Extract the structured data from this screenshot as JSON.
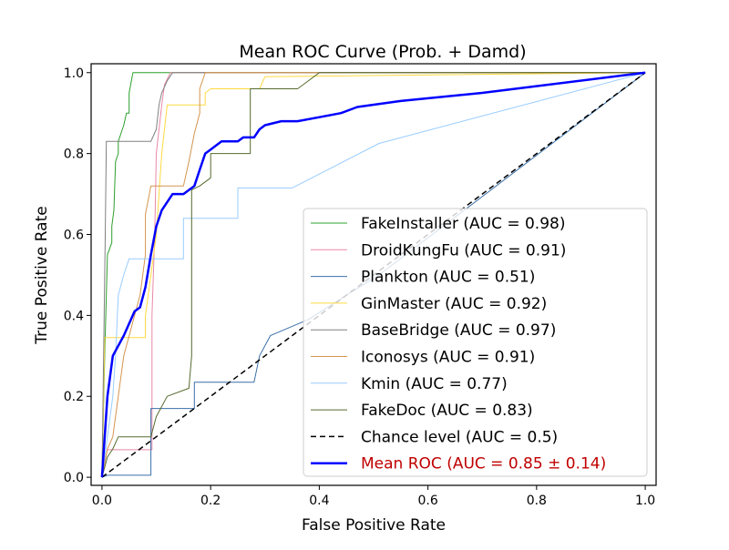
{
  "chart_data": {
    "type": "line",
    "title": "Mean ROC Curve (Prob. + Damd)",
    "xlabel": "False Positive Rate",
    "ylabel": "True Positive Rate",
    "xlim": [
      -0.02,
      1.02
    ],
    "ylim": [
      -0.02,
      1.022
    ],
    "xticks": [
      0.0,
      0.2,
      0.4,
      0.6,
      0.8,
      1.0
    ],
    "xtick_labels": [
      "0.0",
      "0.2",
      "0.4",
      "0.6",
      "0.8",
      "1.0"
    ],
    "yticks": [
      0.0,
      0.2,
      0.4,
      0.6,
      0.8,
      1.0
    ],
    "ytick_labels": [
      "0.0",
      "0.2",
      "0.4",
      "0.6",
      "0.8",
      "1.0"
    ],
    "grid": false,
    "legend_placement": "lower-right",
    "series": [
      {
        "name": "FakeInstaller (AUC = 0.98)",
        "color": "#2ca02c",
        "width": 1,
        "points": [
          [
            0,
            0
          ],
          [
            0.005,
            0.3
          ],
          [
            0.01,
            0.55
          ],
          [
            0.018,
            0.58
          ],
          [
            0.018,
            0.62
          ],
          [
            0.022,
            0.66
          ],
          [
            0.025,
            0.78
          ],
          [
            0.03,
            0.8
          ],
          [
            0.03,
            0.83
          ],
          [
            0.035,
            0.85
          ],
          [
            0.04,
            0.87
          ],
          [
            0.045,
            0.9
          ],
          [
            0.05,
            0.9
          ],
          [
            0.05,
            0.95
          ],
          [
            0.057,
            1.0
          ],
          [
            1,
            1
          ]
        ]
      },
      {
        "name": "DroidKungFu (AUC = 0.91)",
        "color": "#e889a8",
        "width": 1,
        "points": [
          [
            0,
            0
          ],
          [
            0.005,
            0.04
          ],
          [
            0.01,
            0.068
          ],
          [
            0.092,
            0.068
          ],
          [
            0.092,
            0.4
          ],
          [
            0.097,
            0.6
          ],
          [
            0.1,
            0.8
          ],
          [
            0.11,
            0.92
          ],
          [
            0.115,
            0.97
          ],
          [
            0.126,
            1.0
          ],
          [
            1,
            1
          ]
        ]
      },
      {
        "name": "Plankton (AUC = 0.51)",
        "color": "#3a6fa8",
        "width": 1,
        "points": [
          [
            0,
            0
          ],
          [
            0.01,
            0.005
          ],
          [
            0.09,
            0.005
          ],
          [
            0.09,
            0.17
          ],
          [
            0.17,
            0.17
          ],
          [
            0.17,
            0.235
          ],
          [
            0.28,
            0.235
          ],
          [
            0.29,
            0.3
          ],
          [
            0.31,
            0.35
          ],
          [
            0.38,
            0.39
          ],
          [
            0.45,
            0.45
          ],
          [
            0.51,
            0.5
          ],
          [
            1,
            1
          ]
        ]
      },
      {
        "name": "GinMaster (AUC = 0.92)",
        "color": "#ffd940",
        "width": 1,
        "points": [
          [
            0,
            0
          ],
          [
            0.003,
            0.2
          ],
          [
            0.005,
            0.345
          ],
          [
            0.08,
            0.345
          ],
          [
            0.08,
            0.4
          ],
          [
            0.09,
            0.5
          ],
          [
            0.1,
            0.6
          ],
          [
            0.11,
            0.8
          ],
          [
            0.12,
            0.92
          ],
          [
            0.19,
            0.92
          ],
          [
            0.19,
            0.95
          ],
          [
            0.2,
            0.96
          ],
          [
            0.29,
            0.96
          ],
          [
            0.3,
            0.99
          ],
          [
            1,
            1
          ]
        ]
      },
      {
        "name": "BaseBridge (AUC = 0.97)",
        "color": "#808080",
        "width": 1,
        "points": [
          [
            0,
            0
          ],
          [
            0.003,
            0.3
          ],
          [
            0.006,
            0.6
          ],
          [
            0.008,
            0.83
          ],
          [
            0.09,
            0.83
          ],
          [
            0.1,
            0.86
          ],
          [
            0.105,
            0.92
          ],
          [
            0.11,
            0.95
          ],
          [
            0.12,
            0.98
          ],
          [
            0.13,
            1.0
          ],
          [
            1,
            1
          ]
        ]
      },
      {
        "name": "Iconosys (AUC = 0.91)",
        "color": "#d4954e",
        "width": 1,
        "points": [
          [
            0,
            0
          ],
          [
            0.01,
            0.07
          ],
          [
            0.02,
            0.1
          ],
          [
            0.03,
            0.2
          ],
          [
            0.04,
            0.3
          ],
          [
            0.06,
            0.4
          ],
          [
            0.07,
            0.45
          ],
          [
            0.08,
            0.55
          ],
          [
            0.08,
            0.65
          ],
          [
            0.09,
            0.72
          ],
          [
            0.15,
            0.72
          ],
          [
            0.16,
            0.78
          ],
          [
            0.17,
            0.85
          ],
          [
            0.18,
            0.9
          ],
          [
            0.18,
            0.96
          ],
          [
            0.19,
            1.0
          ],
          [
            1,
            1
          ]
        ]
      },
      {
        "name": "Kmin (AUC = 0.77)",
        "color": "#99ccff",
        "width": 1,
        "points": [
          [
            0,
            0
          ],
          [
            0.01,
            0.1
          ],
          [
            0.02,
            0.2
          ],
          [
            0.025,
            0.3
          ],
          [
            0.03,
            0.45
          ],
          [
            0.04,
            0.5
          ],
          [
            0.05,
            0.54
          ],
          [
            0.15,
            0.54
          ],
          [
            0.15,
            0.64
          ],
          [
            0.25,
            0.64
          ],
          [
            0.25,
            0.715
          ],
          [
            0.35,
            0.715
          ],
          [
            0.51,
            0.825
          ],
          [
            1,
            1
          ]
        ]
      },
      {
        "name": "FakeDoc (AUC = 0.83)",
        "color": "#556b2f",
        "width": 1,
        "points": [
          [
            0,
            0
          ],
          [
            0.01,
            0.05
          ],
          [
            0.02,
            0.07
          ],
          [
            0.03,
            0.1
          ],
          [
            0.09,
            0.1
          ],
          [
            0.1,
            0.15
          ],
          [
            0.12,
            0.2
          ],
          [
            0.16,
            0.22
          ],
          [
            0.165,
            0.3
          ],
          [
            0.165,
            0.71
          ],
          [
            0.18,
            0.72
          ],
          [
            0.2,
            0.74
          ],
          [
            0.2,
            0.8
          ],
          [
            0.273,
            0.8
          ],
          [
            0.273,
            0.96
          ],
          [
            0.36,
            0.96
          ],
          [
            0.37,
            0.97
          ],
          [
            0.4,
            1.0
          ],
          [
            1,
            1
          ]
        ]
      },
      {
        "name": "Chance level (AUC = 0.5)",
        "color": "#000000",
        "width": 1.5,
        "dash": true,
        "points": [
          [
            0,
            0
          ],
          [
            1,
            1
          ]
        ]
      },
      {
        "name": "Mean ROC (AUC = 0.85 ± 0.14)",
        "color": "#0000ff",
        "width": 2.5,
        "label_color": "#c00000",
        "points": [
          [
            0,
            0
          ],
          [
            0.01,
            0.2
          ],
          [
            0.02,
            0.3
          ],
          [
            0.04,
            0.35
          ],
          [
            0.06,
            0.41
          ],
          [
            0.07,
            0.42
          ],
          [
            0.08,
            0.47
          ],
          [
            0.09,
            0.55
          ],
          [
            0.1,
            0.62
          ],
          [
            0.11,
            0.66
          ],
          [
            0.13,
            0.7
          ],
          [
            0.15,
            0.7
          ],
          [
            0.17,
            0.72
          ],
          [
            0.18,
            0.76
          ],
          [
            0.19,
            0.8
          ],
          [
            0.2,
            0.81
          ],
          [
            0.21,
            0.82
          ],
          [
            0.22,
            0.83
          ],
          [
            0.25,
            0.83
          ],
          [
            0.26,
            0.84
          ],
          [
            0.28,
            0.84
          ],
          [
            0.29,
            0.86
          ],
          [
            0.3,
            0.87
          ],
          [
            0.33,
            0.88
          ],
          [
            0.36,
            0.88
          ],
          [
            0.4,
            0.89
          ],
          [
            0.44,
            0.9
          ],
          [
            0.47,
            0.915
          ],
          [
            0.55,
            0.93
          ],
          [
            0.7,
            0.95
          ],
          [
            1,
            1
          ]
        ]
      }
    ]
  }
}
